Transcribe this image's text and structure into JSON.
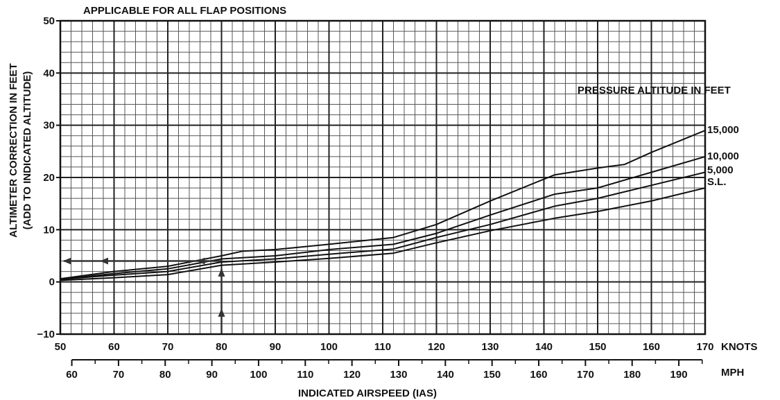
{
  "chart_data": {
    "type": "line",
    "title": "APPLICABLE FOR ALL FLAP POSITIONS",
    "xlabel": "INDICATED AIRSPEED (IAS)",
    "ylabel": "ALTIMETER CORRECTION IN FEET",
    "ylabel_sub": "(ADD TO INDICATED ALTITUDE)",
    "x_unit_primary": "KNOTS",
    "x_unit_secondary": "MPH",
    "xlim": [
      50,
      170
    ],
    "ylim": [
      -10,
      50
    ],
    "x_ticks_knots": [
      "50",
      "60",
      "70",
      "80",
      "90",
      "100",
      "110",
      "120",
      "130",
      "140",
      "150",
      "160",
      "170"
    ],
    "x_ticks_mph": [
      "60",
      "70",
      "80",
      "90",
      "100",
      "110",
      "120",
      "130",
      "140",
      "150",
      "160",
      "170",
      "180",
      "190"
    ],
    "y_ticks": [
      "-10",
      "0",
      "10",
      "20",
      "30",
      "40",
      "50"
    ],
    "grid": true,
    "legend_title": "PRESSURE ALTITUDE IN FEET",
    "legend_placement": "right",
    "series": [
      {
        "name": "S.L.",
        "x": [
          50,
          60,
          70,
          80,
          90,
          100,
          112,
          120,
          130,
          142,
          150,
          160,
          170
        ],
        "y": [
          0.3,
          0.8,
          1.4,
          3.2,
          3.8,
          4.5,
          5.5,
          7.5,
          9.8,
          12.2,
          13.5,
          15.5,
          18
        ]
      },
      {
        "name": "5,000",
        "x": [
          50,
          60,
          70,
          80,
          90,
          100,
          112,
          120,
          130,
          142,
          150,
          160,
          170
        ],
        "y": [
          0.5,
          1.3,
          2.0,
          3.8,
          4.4,
          5.3,
          6.3,
          8.5,
          11.0,
          14.5,
          16.0,
          18.5,
          21
        ]
      },
      {
        "name": "10,000",
        "x": [
          50,
          60,
          70,
          80,
          90,
          100,
          112,
          120,
          130,
          142,
          150,
          160,
          170
        ],
        "y": [
          0.5,
          1.6,
          2.5,
          4.4,
          5.0,
          6.2,
          7.2,
          9.3,
          12.8,
          16.8,
          18.0,
          21.0,
          24
        ]
      },
      {
        "name": "15,000",
        "x": [
          50,
          60,
          70,
          80,
          84,
          90,
          100,
          112,
          120,
          130,
          142,
          150,
          155,
          160,
          170
        ],
        "y": [
          0.6,
          2.0,
          3.0,
          5.0,
          5.9,
          6.2,
          7.2,
          8.5,
          11.0,
          15.5,
          20.5,
          21.8,
          22.5,
          24.8,
          29
        ]
      }
    ],
    "annotations": {
      "example_arrow_label": "",
      "example_airspeed_knots": 80,
      "example_result_feet": 4
    }
  }
}
